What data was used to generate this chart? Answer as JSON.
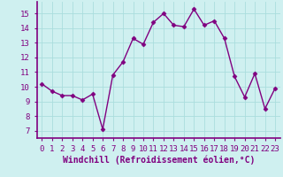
{
  "x": [
    0,
    1,
    2,
    3,
    4,
    5,
    6,
    7,
    8,
    9,
    10,
    11,
    12,
    13,
    14,
    15,
    16,
    17,
    18,
    19,
    20,
    21,
    22,
    23
  ],
  "y": [
    10.2,
    9.7,
    9.4,
    9.4,
    9.1,
    9.5,
    7.1,
    10.8,
    11.7,
    13.3,
    12.9,
    14.4,
    15.0,
    14.2,
    14.1,
    15.3,
    14.2,
    14.5,
    13.3,
    10.7,
    9.3,
    10.9,
    8.5,
    9.9
  ],
  "line_color": "#800080",
  "marker": "D",
  "marker_size": 2.5,
  "line_width": 1.0,
  "bg_color": "#cff0f0",
  "grid_color": "#aadddd",
  "xlabel": "Windchill (Refroidissement éolien,°C)",
  "xlabel_fontsize": 7,
  "tick_fontsize": 6.5,
  "yticks": [
    7,
    8,
    9,
    10,
    11,
    12,
    13,
    14,
    15
  ],
  "ylim": [
    6.5,
    15.8
  ],
  "xlim": [
    -0.5,
    23.5
  ],
  "xticks": [
    0,
    1,
    2,
    3,
    4,
    5,
    6,
    7,
    8,
    9,
    10,
    11,
    12,
    13,
    14,
    15,
    16,
    17,
    18,
    19,
    20,
    21,
    22,
    23
  ],
  "axis_color": "#800080",
  "spine_linewidth": 1.2
}
